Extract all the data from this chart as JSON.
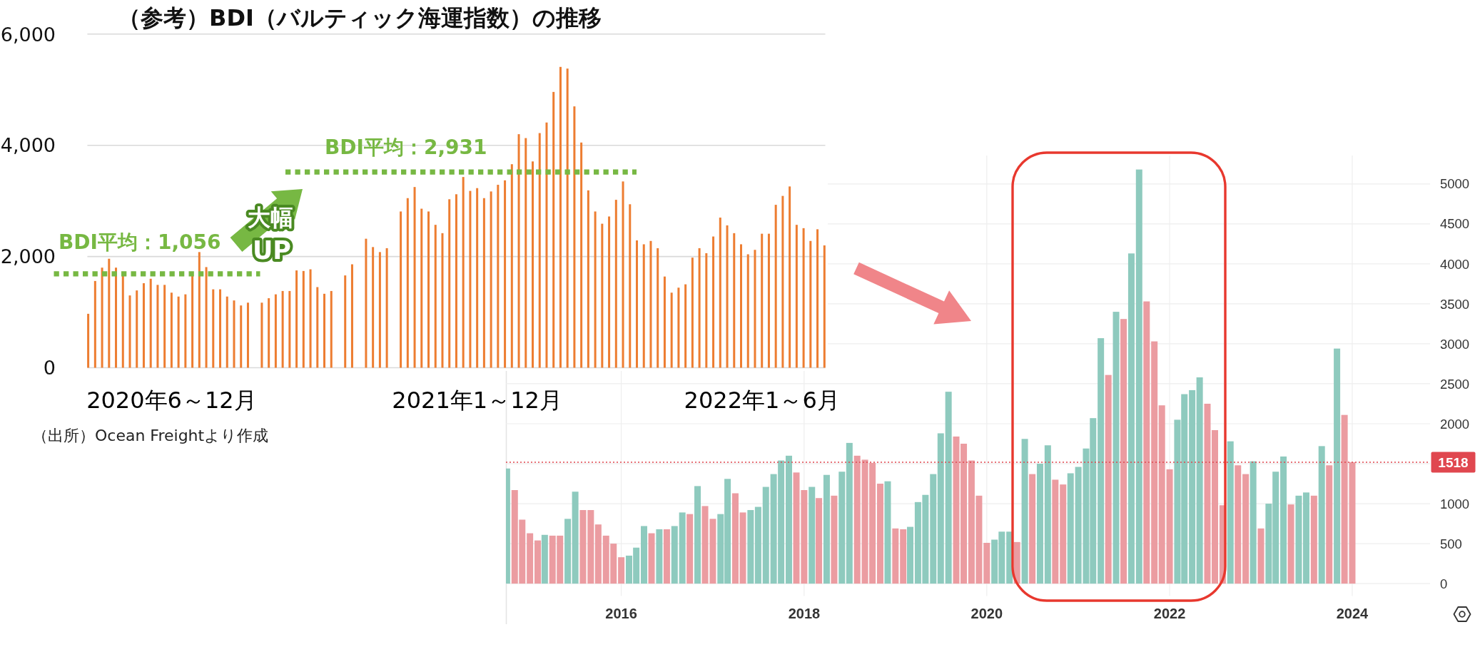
{
  "chart_data": [
    {
      "type": "bar",
      "title": "（参考）BDI（バルティック海運指数）の推移",
      "categories": [
        null,
        null,
        null,
        null,
        null,
        null,
        null,
        null,
        null,
        null,
        null,
        null,
        "2020年6～12月",
        null,
        null,
        null,
        null,
        null,
        null,
        null,
        null,
        null,
        null,
        null,
        null,
        null,
        null,
        null,
        null,
        null,
        null,
        null,
        null,
        null,
        null,
        null,
        null,
        null,
        null,
        null,
        null,
        null,
        null,
        null,
        null,
        null,
        null,
        null,
        null,
        null,
        null,
        null,
        null,
        null,
        null,
        null,
        "2021年1～12月",
        null,
        null,
        null,
        null,
        null,
        null,
        null,
        null,
        null,
        null,
        null,
        null,
        null,
        null,
        null,
        null,
        null,
        null,
        null,
        null,
        null,
        null,
        null,
        null,
        null,
        null,
        null,
        null,
        null,
        null,
        null,
        null,
        null,
        null,
        null,
        null,
        null,
        null,
        null,
        null,
        "2022年1～6月",
        null,
        null,
        null,
        null,
        null,
        null,
        null,
        null,
        null
      ],
      "values": [
        970,
        1560,
        1800,
        1960,
        1800,
        1680,
        1300,
        1390,
        1520,
        1600,
        1490,
        1490,
        1350,
        1280,
        1320,
        1660,
        2080,
        1810,
        1410,
        1410,
        1280,
        1210,
        1120,
        1170,
        null,
        1170,
        1250,
        1320,
        1380,
        1380,
        1750,
        1740,
        1770,
        1450,
        1330,
        1380,
        null,
        1660,
        1860,
        null,
        2320,
        2170,
        2080,
        2150,
        null,
        2810,
        3050,
        3250,
        2860,
        2810,
        2570,
        2420,
        3030,
        3120,
        3430,
        3180,
        3230,
        3050,
        3170,
        3290,
        3370,
        3660,
        4200,
        4130,
        3710,
        4220,
        4410,
        4960,
        5410,
        5380,
        4700,
        4050,
        3190,
        2810,
        2590,
        2720,
        3020,
        3350,
        2940,
        2290,
        2220,
        2280,
        2150,
        1640,
        1350,
        1440,
        1500,
        1980,
        2150,
        2060,
        2360,
        2700,
        2560,
        2420,
        2220,
        2040,
        2120,
        2410,
        2410,
        2930,
        3090,
        3260,
        2570,
        2510,
        2280,
        2490,
        2200
      ],
      "color": "#ed7d31",
      "ylim": [
        0,
        6000
      ],
      "yticks": [
        0,
        {
          "value": 2000,
          "label": "2,000"
        },
        {
          "value": 4000,
          "label": "4,000"
        },
        {
          "value": 6000,
          "label": "6,000"
        }
      ],
      "grid": "y",
      "ref_lines": [
        {
          "axis": "y",
          "value": 1690,
          "label": "BDI平均：1,056",
          "color": "#77b843",
          "line_style": "dotted"
        },
        {
          "axis": "y",
          "value": 3520,
          "label": "BDI平均：2,931",
          "color": "#77b843",
          "line_style": "dotted"
        }
      ],
      "annotations": [
        "大幅",
        "UP",
        "（出所）Ocean Freightより作成"
      ]
    },
    {
      "type": "bar",
      "x": [
        "2014-10",
        "2014-11",
        "2014-12",
        "2015-01",
        "2015-02",
        "2015-03",
        "2015-04",
        "2015-05",
        "2015-06",
        "2015-07",
        "2015-08",
        "2015-09",
        "2015-10",
        "2015-11",
        "2015-12",
        "2016-01",
        "2016-02",
        "2016-03",
        "2016-04",
        "2016-05",
        "2016-06",
        "2016-07",
        "2016-08",
        "2016-09",
        "2016-10",
        "2016-11",
        "2016-12",
        "2017-01",
        "2017-02",
        "2017-03",
        "2017-04",
        "2017-05",
        "2017-06",
        "2017-07",
        "2017-08",
        "2017-09",
        "2017-10",
        "2017-11",
        "2017-12",
        "2018-01",
        "2018-02",
        "2018-03",
        "2018-04",
        "2018-05",
        "2018-06",
        "2018-07",
        "2018-08",
        "2018-09",
        "2018-10",
        "2018-11",
        "2018-12",
        "2019-01",
        "2019-02",
        "2019-03",
        "2019-04",
        "2019-05",
        "2019-06",
        "2019-07",
        "2019-08",
        "2019-09",
        "2019-10",
        "2019-11",
        "2019-12",
        "2020-01",
        "2020-02",
        "2020-03",
        "2020-04",
        "2020-05",
        "2020-06",
        "2020-07",
        "2020-08",
        "2020-09",
        "2020-10",
        "2020-11",
        "2020-12",
        "2021-01",
        "2021-02",
        "2021-03",
        "2021-04",
        "2021-05",
        "2021-06",
        "2021-07",
        "2021-08",
        "2021-09",
        "2021-10",
        "2021-11",
        "2021-12",
        "2022-01",
        "2022-02",
        "2022-03",
        "2022-04",
        "2022-05",
        "2022-06",
        "2022-07",
        "2022-08",
        "2022-09",
        "2022-10",
        "2022-11",
        "2022-12",
        "2023-01",
        "2023-02",
        "2023-03",
        "2023-04",
        "2023-05",
        "2023-06",
        "2023-07",
        "2023-08",
        "2023-09",
        "2023-10",
        "2023-11",
        "2023-12",
        "2024-01"
      ],
      "values": [
        1440,
        1170,
        800,
        630,
        540,
        610,
        600,
        600,
        810,
        1150,
        920,
        920,
        740,
        600,
        500,
        330,
        350,
        450,
        720,
        630,
        680,
        680,
        720,
        890,
        870,
        1220,
        970,
        810,
        870,
        1310,
        1130,
        890,
        920,
        960,
        1210,
        1370,
        1540,
        1600,
        1390,
        1170,
        1210,
        1070,
        1360,
        1100,
        1400,
        1760,
        1600,
        1550,
        1510,
        1250,
        1280,
        690,
        680,
        710,
        1020,
        1110,
        1370,
        1880,
        2400,
        1840,
        1750,
        1540,
        1100,
        510,
        550,
        650,
        650,
        520,
        1810,
        1370,
        1500,
        1730,
        1300,
        1240,
        1380,
        1460,
        1690,
        2070,
        3070,
        2610,
        3400,
        3310,
        4130,
        5180,
        3530,
        3030,
        2230,
        1430,
        2050,
        2370,
        2420,
        2580,
        2250,
        1920,
        980,
        1780,
        1480,
        1370,
        1530,
        690,
        1000,
        1400,
        1590,
        990,
        1100,
        1140,
        1100,
        1720,
        1480,
        2940,
        2110,
        1518
      ],
      "colors": [
        "#8ecabe",
        "#eb9ca1",
        "#eb9ca1",
        "#eb9ca1",
        "#eb9ca1",
        "#8ecabe",
        "#eb9ca1",
        "#eb9ca1",
        "#8ecabe",
        "#8ecabe",
        "#eb9ca1",
        "#eb9ca1",
        "#eb9ca1",
        "#eb9ca1",
        "#eb9ca1",
        "#eb9ca1",
        "#8ecabe",
        "#8ecabe",
        "#8ecabe",
        "#eb9ca1",
        "#8ecabe",
        "#eb9ca1",
        "#8ecabe",
        "#8ecabe",
        "#eb9ca1",
        "#8ecabe",
        "#eb9ca1",
        "#eb9ca1",
        "#8ecabe",
        "#8ecabe",
        "#eb9ca1",
        "#eb9ca1",
        "#8ecabe",
        "#8ecabe",
        "#8ecabe",
        "#8ecabe",
        "#8ecabe",
        "#8ecabe",
        "#eb9ca1",
        "#eb9ca1",
        "#8ecabe",
        "#eb9ca1",
        "#8ecabe",
        "#eb9ca1",
        "#8ecabe",
        "#8ecabe",
        "#eb9ca1",
        "#eb9ca1",
        "#eb9ca1",
        "#eb9ca1",
        "#8ecabe",
        "#eb9ca1",
        "#eb9ca1",
        "#8ecabe",
        "#8ecabe",
        "#8ecabe",
        "#8ecabe",
        "#8ecabe",
        "#8ecabe",
        "#eb9ca1",
        "#eb9ca1",
        "#eb9ca1",
        "#eb9ca1",
        "#eb9ca1",
        "#8ecabe",
        "#8ecabe",
        "#8ecabe",
        "#eb9ca1",
        "#8ecabe",
        "#eb9ca1",
        "#8ecabe",
        "#8ecabe",
        "#eb9ca1",
        "#eb9ca1",
        "#8ecabe",
        "#8ecabe",
        "#8ecabe",
        "#8ecabe",
        "#8ecabe",
        "#eb9ca1",
        "#8ecabe",
        "#eb9ca1",
        "#8ecabe",
        "#8ecabe",
        "#eb9ca1",
        "#eb9ca1",
        "#eb9ca1",
        "#eb9ca1",
        "#8ecabe",
        "#8ecabe",
        "#8ecabe",
        "#8ecabe",
        "#eb9ca1",
        "#eb9ca1",
        "#eb9ca1",
        "#8ecabe",
        "#eb9ca1",
        "#eb9ca1",
        "#8ecabe",
        "#eb9ca1",
        "#8ecabe",
        "#8ecabe",
        "#8ecabe",
        "#eb9ca1",
        "#8ecabe",
        "#8ecabe",
        "#eb9ca1",
        "#8ecabe",
        "#eb9ca1",
        "#8ecabe",
        "#eb9ca1",
        "#eb9ca1"
      ],
      "xlim": [
        "2014-09-27",
        "2024-11-07"
      ],
      "xticks": [
        "2016",
        "2018",
        "2020",
        "2022",
        "2024"
      ],
      "ylim": [
        -155,
        5355
      ],
      "yticks": [
        0,
        500,
        1000,
        {
          "value": 1500,
          "label": null
        },
        2000,
        2500,
        3000,
        3500,
        4000,
        4500,
        5000
      ],
      "grid": true,
      "ref_lines": [
        {
          "axis": "y",
          "value": 1518,
          "label": "1518",
          "color": "#e0474f",
          "line_style": "dotted"
        }
      ]
    }
  ]
}
